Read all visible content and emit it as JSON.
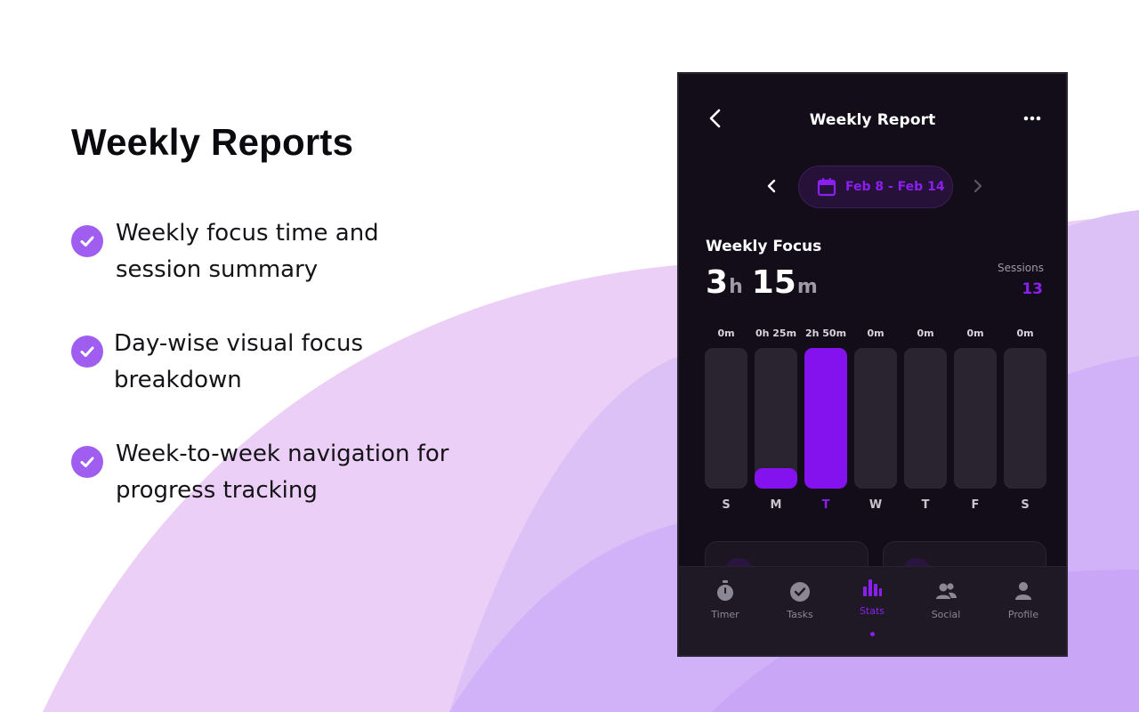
{
  "promo": {
    "title": "Weekly Reports",
    "features": [
      "Weekly focus time and session summary",
      "Day-wise visual focus breakdown",
      "Week-to-week navigation for progress tracking"
    ]
  },
  "colors": {
    "accent": "#8412ee",
    "background": "#130d1a",
    "check": "#a05ef0"
  },
  "header": {
    "title": "Weekly Report",
    "back_icon": "chevron-left-icon",
    "more_icon": "more-horizontal-icon"
  },
  "week": {
    "range": "Feb 8 - Feb 14",
    "calendar_icon": "calendar-icon"
  },
  "focus": {
    "label": "Weekly Focus",
    "hours": "3",
    "hours_unit": "h",
    "minutes": "15",
    "minutes_unit": "m",
    "sessions_label": "Sessions",
    "sessions_value": "13"
  },
  "chart_data": {
    "type": "bar",
    "categories": [
      "S",
      "M",
      "T",
      "W",
      "T",
      "F",
      "S"
    ],
    "value_labels": [
      "0m",
      "0h 25m",
      "2h 50m",
      "0m",
      "0m",
      "0m",
      "0m"
    ],
    "values": [
      0,
      25,
      170,
      0,
      0,
      0,
      0
    ],
    "ylim": [
      0,
      170
    ],
    "active_index": 2
  },
  "tabs": [
    {
      "label": "Timer",
      "icon": "stopwatch-icon"
    },
    {
      "label": "Tasks",
      "icon": "check-circle-icon"
    },
    {
      "label": "Stats",
      "icon": "bar-chart-icon",
      "active": true
    },
    {
      "label": "Social",
      "icon": "people-icon"
    },
    {
      "label": "Profile",
      "icon": "person-icon"
    }
  ]
}
